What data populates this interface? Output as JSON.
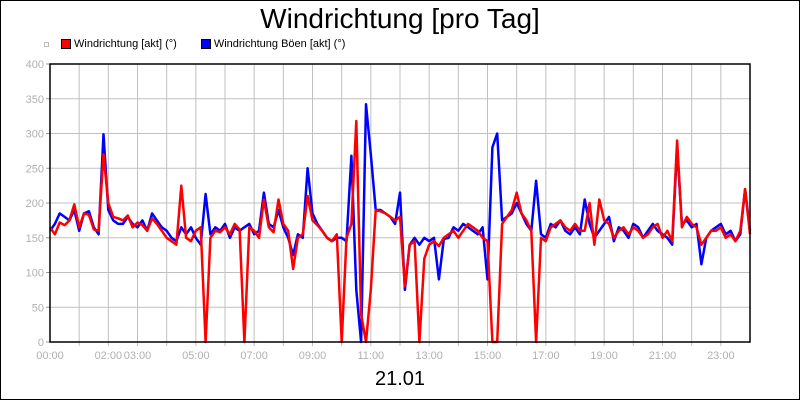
{
  "chart_data": {
    "type": "line",
    "title": "Windrichtung [pro Tag]",
    "xlabel": "21.01",
    "ylabel": "",
    "ylim": [
      0,
      400
    ],
    "yticks": [
      0,
      50,
      100,
      150,
      200,
      250,
      300,
      350,
      400
    ],
    "xlim": [
      "00:00",
      "24:00"
    ],
    "xticks": [
      "00:00",
      "02:00",
      "03:00",
      "05:00",
      "07:00",
      "09:00",
      "11:00",
      "13:00",
      "15:00",
      "17:00",
      "19:00",
      "21:00",
      "23:00"
    ],
    "grid": true,
    "legend_placement": "top-left",
    "x": [
      "00:00",
      "00:10",
      "00:20",
      "00:30",
      "00:40",
      "00:50",
      "01:00",
      "01:10",
      "01:20",
      "01:30",
      "01:40",
      "01:50",
      "02:00",
      "02:10",
      "02:20",
      "02:30",
      "02:40",
      "02:50",
      "03:00",
      "03:10",
      "03:20",
      "03:30",
      "03:40",
      "03:50",
      "04:00",
      "04:10",
      "04:20",
      "04:30",
      "04:40",
      "04:50",
      "05:00",
      "05:10",
      "05:20",
      "05:30",
      "05:40",
      "05:50",
      "06:00",
      "06:10",
      "06:20",
      "06:30",
      "06:40",
      "06:50",
      "07:00",
      "07:10",
      "07:20",
      "07:30",
      "07:40",
      "07:50",
      "08:00",
      "08:10",
      "08:20",
      "08:30",
      "08:40",
      "08:50",
      "09:00",
      "09:10",
      "09:20",
      "09:30",
      "09:40",
      "09:50",
      "10:00",
      "10:10",
      "10:20",
      "10:30",
      "10:40",
      "10:50",
      "11:00",
      "11:10",
      "11:20",
      "11:30",
      "11:40",
      "11:50",
      "12:00",
      "12:10",
      "12:20",
      "12:30",
      "12:40",
      "12:50",
      "13:00",
      "13:10",
      "13:20",
      "13:30",
      "13:40",
      "13:50",
      "14:00",
      "14:10",
      "14:20",
      "14:30",
      "14:40",
      "14:50",
      "15:00",
      "15:10",
      "15:20",
      "15:30",
      "15:40",
      "15:50",
      "16:00",
      "16:10",
      "16:20",
      "16:30",
      "16:40",
      "16:50",
      "17:00",
      "17:10",
      "17:20",
      "17:30",
      "17:40",
      "17:50",
      "18:00",
      "18:10",
      "18:20",
      "18:30",
      "18:40",
      "18:50",
      "19:00",
      "19:10",
      "19:20",
      "19:30",
      "19:40",
      "19:50",
      "20:00",
      "20:10",
      "20:20",
      "20:30",
      "20:40",
      "20:50",
      "21:00",
      "21:10",
      "21:20",
      "21:30",
      "21:40",
      "21:50",
      "22:00",
      "22:10",
      "22:20",
      "22:30",
      "22:40",
      "22:50",
      "23:00",
      "23:10",
      "23:20",
      "23:30",
      "23:40",
      "23:50",
      "24:00"
    ],
    "series": [
      {
        "name": "Windrichtung Böen [akt] (°)",
        "color": "#0000ff",
        "values": [
          160,
          170,
          185,
          180,
          175,
          190,
          160,
          185,
          188,
          165,
          155,
          299,
          190,
          175,
          170,
          170,
          180,
          170,
          165,
          175,
          160,
          185,
          175,
          165,
          160,
          150,
          145,
          165,
          155,
          165,
          150,
          140,
          213,
          155,
          165,
          160,
          170,
          150,
          165,
          160,
          165,
          170,
          155,
          160,
          215,
          170,
          165,
          190,
          165,
          150,
          125,
          155,
          150,
          250,
          185,
          170,
          160,
          150,
          145,
          150,
          150,
          145,
          268,
          75,
          0,
          342,
          270,
          190,
          190,
          185,
          180,
          170,
          215,
          75,
          140,
          150,
          140,
          150,
          145,
          150,
          90,
          148,
          150,
          165,
          160,
          170,
          165,
          160,
          155,
          165,
          90,
          280,
          300,
          175,
          180,
          185,
          200,
          185,
          170,
          160,
          232,
          155,
          150,
          170,
          165,
          175,
          160,
          155,
          165,
          155,
          205,
          170,
          150,
          160,
          170,
          180,
          145,
          165,
          160,
          150,
          170,
          165,
          150,
          160,
          170,
          160,
          155,
          150,
          140,
          280,
          170,
          175,
          165,
          170,
          112,
          150,
          160,
          165,
          170,
          155,
          160,
          145,
          155,
          220,
          160
        ]
      },
      {
        "name": "Windrichtung [akt] (°)",
        "color": "#ff0000",
        "values": [
          165,
          155,
          172,
          168,
          175,
          198,
          165,
          185,
          183,
          162,
          160,
          270,
          200,
          180,
          178,
          175,
          182,
          165,
          172,
          168,
          160,
          178,
          170,
          160,
          150,
          145,
          140,
          225,
          150,
          145,
          160,
          165,
          0,
          150,
          160,
          158,
          165,
          155,
          170,
          162,
          0,
          165,
          160,
          150,
          205,
          165,
          158,
          205,
          170,
          160,
          105,
          150,
          155,
          210,
          175,
          168,
          160,
          150,
          145,
          155,
          0,
          150,
          170,
          318,
          40,
          0,
          75,
          190,
          188,
          185,
          180,
          175,
          180,
          80,
          140,
          145,
          0,
          120,
          140,
          145,
          138,
          150,
          155,
          160,
          150,
          160,
          170,
          165,
          160,
          150,
          145,
          0,
          0,
          170,
          180,
          190,
          215,
          185,
          175,
          160,
          0,
          150,
          145,
          165,
          170,
          175,
          165,
          160,
          170,
          160,
          160,
          200,
          140,
          205,
          175,
          170,
          150,
          160,
          165,
          155,
          165,
          160,
          150,
          155,
          165,
          170,
          150,
          160,
          145,
          290,
          165,
          180,
          170,
          165,
          140,
          150,
          160,
          160,
          165,
          150,
          155,
          145,
          160,
          220,
          155
        ]
      }
    ],
    "legend": [
      {
        "label": "Windrichtung [akt] (°)",
        "color": "#ff0000"
      },
      {
        "label": "Windrichtung Böen [akt] (°)",
        "color": "#0000ff"
      }
    ]
  }
}
